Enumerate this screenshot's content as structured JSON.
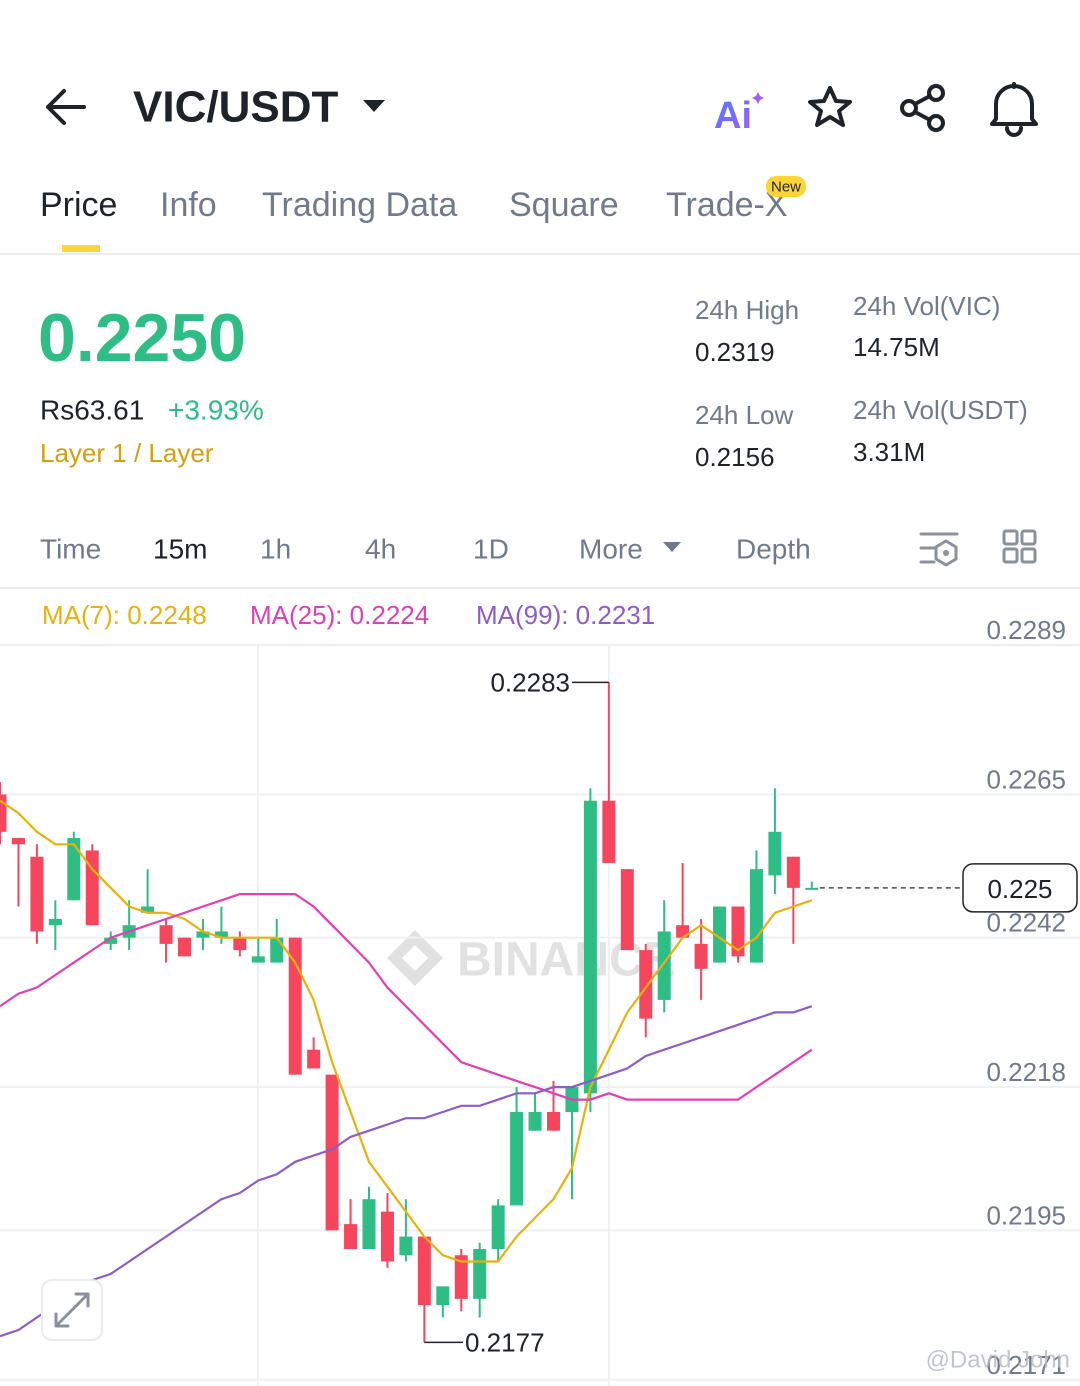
{
  "header": {
    "pair": "VIC/USDT",
    "ai": "Ai"
  },
  "tabs": [
    "Price",
    "Info",
    "Trading Data",
    "Square",
    "Trade-X"
  ],
  "tab_badge": "New",
  "ticker": {
    "price": "0.2250",
    "fiat": "Rs63.61",
    "change": "+3.93%",
    "tags": "Layer 1 / Layer",
    "stats": [
      {
        "label": "24h High",
        "value": "0.2319"
      },
      {
        "label": "24h Low",
        "value": "0.2156"
      },
      {
        "label": "24h Vol(VIC)",
        "value": "14.75M"
      },
      {
        "label": "24h Vol(USDT)",
        "value": "3.31M"
      }
    ]
  },
  "intervals": [
    "Time",
    "15m",
    "1h",
    "4h",
    "1D",
    "More",
    "Depth"
  ],
  "chart_data": {
    "type": "candlestick",
    "open": [
      0.2265,
      0.2258,
      0.2255,
      0.2244,
      0.2248,
      0.2256,
      0.2241,
      0.2242,
      0.2246,
      0.2244,
      0.2242,
      0.2242,
      0.2242,
      0.2242,
      0.2238,
      0.2238,
      0.2242,
      0.2224,
      0.222,
      0.2196,
      0.2192,
      0.2198,
      0.2191,
      0.2194,
      0.2183,
      0.2191,
      0.2184,
      0.2192,
      0.2199,
      0.2211,
      0.2214,
      0.2214,
      0.2217,
      0.2264,
      0.2253,
      0.224,
      0.2232,
      0.2244,
      0.2241,
      0.2238,
      0.2247,
      0.2238,
      0.2252,
      0.2255,
      0.225
    ],
    "high": [
      0.2267,
      0.2258,
      0.2257,
      0.2248,
      0.2259,
      0.2257,
      0.2243,
      0.2248,
      0.2253,
      0.2245,
      0.2242,
      0.2245,
      0.2247,
      0.2243,
      0.2242,
      0.2245,
      0.2242,
      0.2226,
      0.222,
      0.22,
      0.2202,
      0.2201,
      0.22,
      0.2194,
      0.2186,
      0.2192,
      0.2193,
      0.22,
      0.2218,
      0.2217,
      0.2219,
      0.2218,
      0.2266,
      0.2283,
      0.2253,
      0.2241,
      0.2248,
      0.2254,
      0.2245,
      0.2247,
      0.2247,
      0.2256,
      0.2266,
      0.2255,
      0.2251
    ],
    "low": [
      0.2257,
      0.2247,
      0.2241,
      0.224,
      0.2248,
      0.2244,
      0.224,
      0.224,
      0.2246,
      0.2238,
      0.2239,
      0.224,
      0.2241,
      0.2239,
      0.2238,
      0.2238,
      0.222,
      0.2221,
      0.2195,
      0.2192,
      0.2192,
      0.2189,
      0.219,
      0.2177,
      0.2181,
      0.2182,
      0.2181,
      0.219,
      0.2199,
      0.2211,
      0.2211,
      0.22,
      0.2214,
      0.2254,
      0.224,
      0.2226,
      0.223,
      0.2242,
      0.2232,
      0.2238,
      0.2238,
      0.2238,
      0.2249,
      0.2241,
      0.225
    ],
    "close": [
      0.2259,
      0.2257,
      0.2243,
      0.2245,
      0.2258,
      0.2244,
      0.2242,
      0.2244,
      0.2247,
      0.2241,
      0.2239,
      0.2243,
      0.2243,
      0.224,
      0.2239,
      0.2242,
      0.222,
      0.2221,
      0.2195,
      0.2192,
      0.22,
      0.219,
      0.2194,
      0.2183,
      0.2186,
      0.2184,
      0.2192,
      0.2199,
      0.2214,
      0.2214,
      0.2211,
      0.2218,
      0.2264,
      0.2254,
      0.224,
      0.2229,
      0.2243,
      0.2242,
      0.2237,
      0.2247,
      0.2239,
      0.2253,
      0.2259,
      0.225,
      0.225
    ],
    "up_color": "#2ebd85",
    "down_color": "#f6465d",
    "series": [
      {
        "name": "MA(7): 0.2248",
        "color": "#e8b10c",
        "values": [
          0.2264,
          0.2262,
          0.2259,
          0.2257,
          0.2257,
          0.2253,
          0.225,
          0.2247,
          0.2246,
          0.2246,
          0.2245,
          0.2243,
          0.2242,
          0.2242,
          0.2242,
          0.2242,
          0.2238,
          0.2232,
          0.2222,
          0.2214,
          0.2206,
          0.2202,
          0.2198,
          0.2194,
          0.2191,
          0.219,
          0.219,
          0.219,
          0.2194,
          0.2197,
          0.22,
          0.2205,
          0.2218,
          0.2224,
          0.223,
          0.2234,
          0.2238,
          0.2242,
          0.2244,
          0.2242,
          0.224,
          0.2242,
          0.2246,
          0.2247,
          0.2248
        ]
      },
      {
        "name": "MA(25): 0.2224",
        "color": "#e040b4",
        "values": [
          0.2231,
          0.2233,
          0.2234,
          0.2236,
          0.2238,
          0.224,
          0.2242,
          0.2243,
          0.2244,
          0.2245,
          0.2246,
          0.2247,
          0.2248,
          0.2249,
          0.2249,
          0.2249,
          0.2249,
          0.2247,
          0.2244,
          0.2241,
          0.2238,
          0.2234,
          0.2231,
          0.2228,
          0.2225,
          0.2222,
          0.2221,
          0.222,
          0.2219,
          0.2218,
          0.2217,
          0.2216,
          0.2216,
          0.2217,
          0.2216,
          0.2216,
          0.2216,
          0.2216,
          0.2216,
          0.2216,
          0.2216,
          0.2218,
          0.222,
          0.2222,
          0.2224
        ]
      },
      {
        "name": "MA(99): 0.2231",
        "color": "#8e5cc9",
        "values": [
          0.2178,
          0.2179,
          0.2181,
          0.2183,
          0.2185,
          0.2187,
          0.2188,
          0.219,
          0.2192,
          0.2194,
          0.2196,
          0.2198,
          0.22,
          0.2201,
          0.2203,
          0.2204,
          0.2206,
          0.2207,
          0.2208,
          0.221,
          0.2211,
          0.2212,
          0.2213,
          0.2213,
          0.2214,
          0.2215,
          0.2215,
          0.2216,
          0.2217,
          0.2217,
          0.2218,
          0.2218,
          0.2219,
          0.222,
          0.2221,
          0.2223,
          0.2224,
          0.2225,
          0.2226,
          0.2227,
          0.2228,
          0.2229,
          0.223,
          0.223,
          0.2231
        ]
      }
    ],
    "ylim": [
      0.217,
      0.2289
    ],
    "yticks": [
      0.2289,
      0.2265,
      0.2242,
      0.2218,
      0.2195,
      0.2171
    ],
    "grid": true,
    "max_label": 0.2283,
    "min_label": 0.2177,
    "last_price": 0.225
  },
  "watermark": "BINANCE",
  "credit": "@David John"
}
